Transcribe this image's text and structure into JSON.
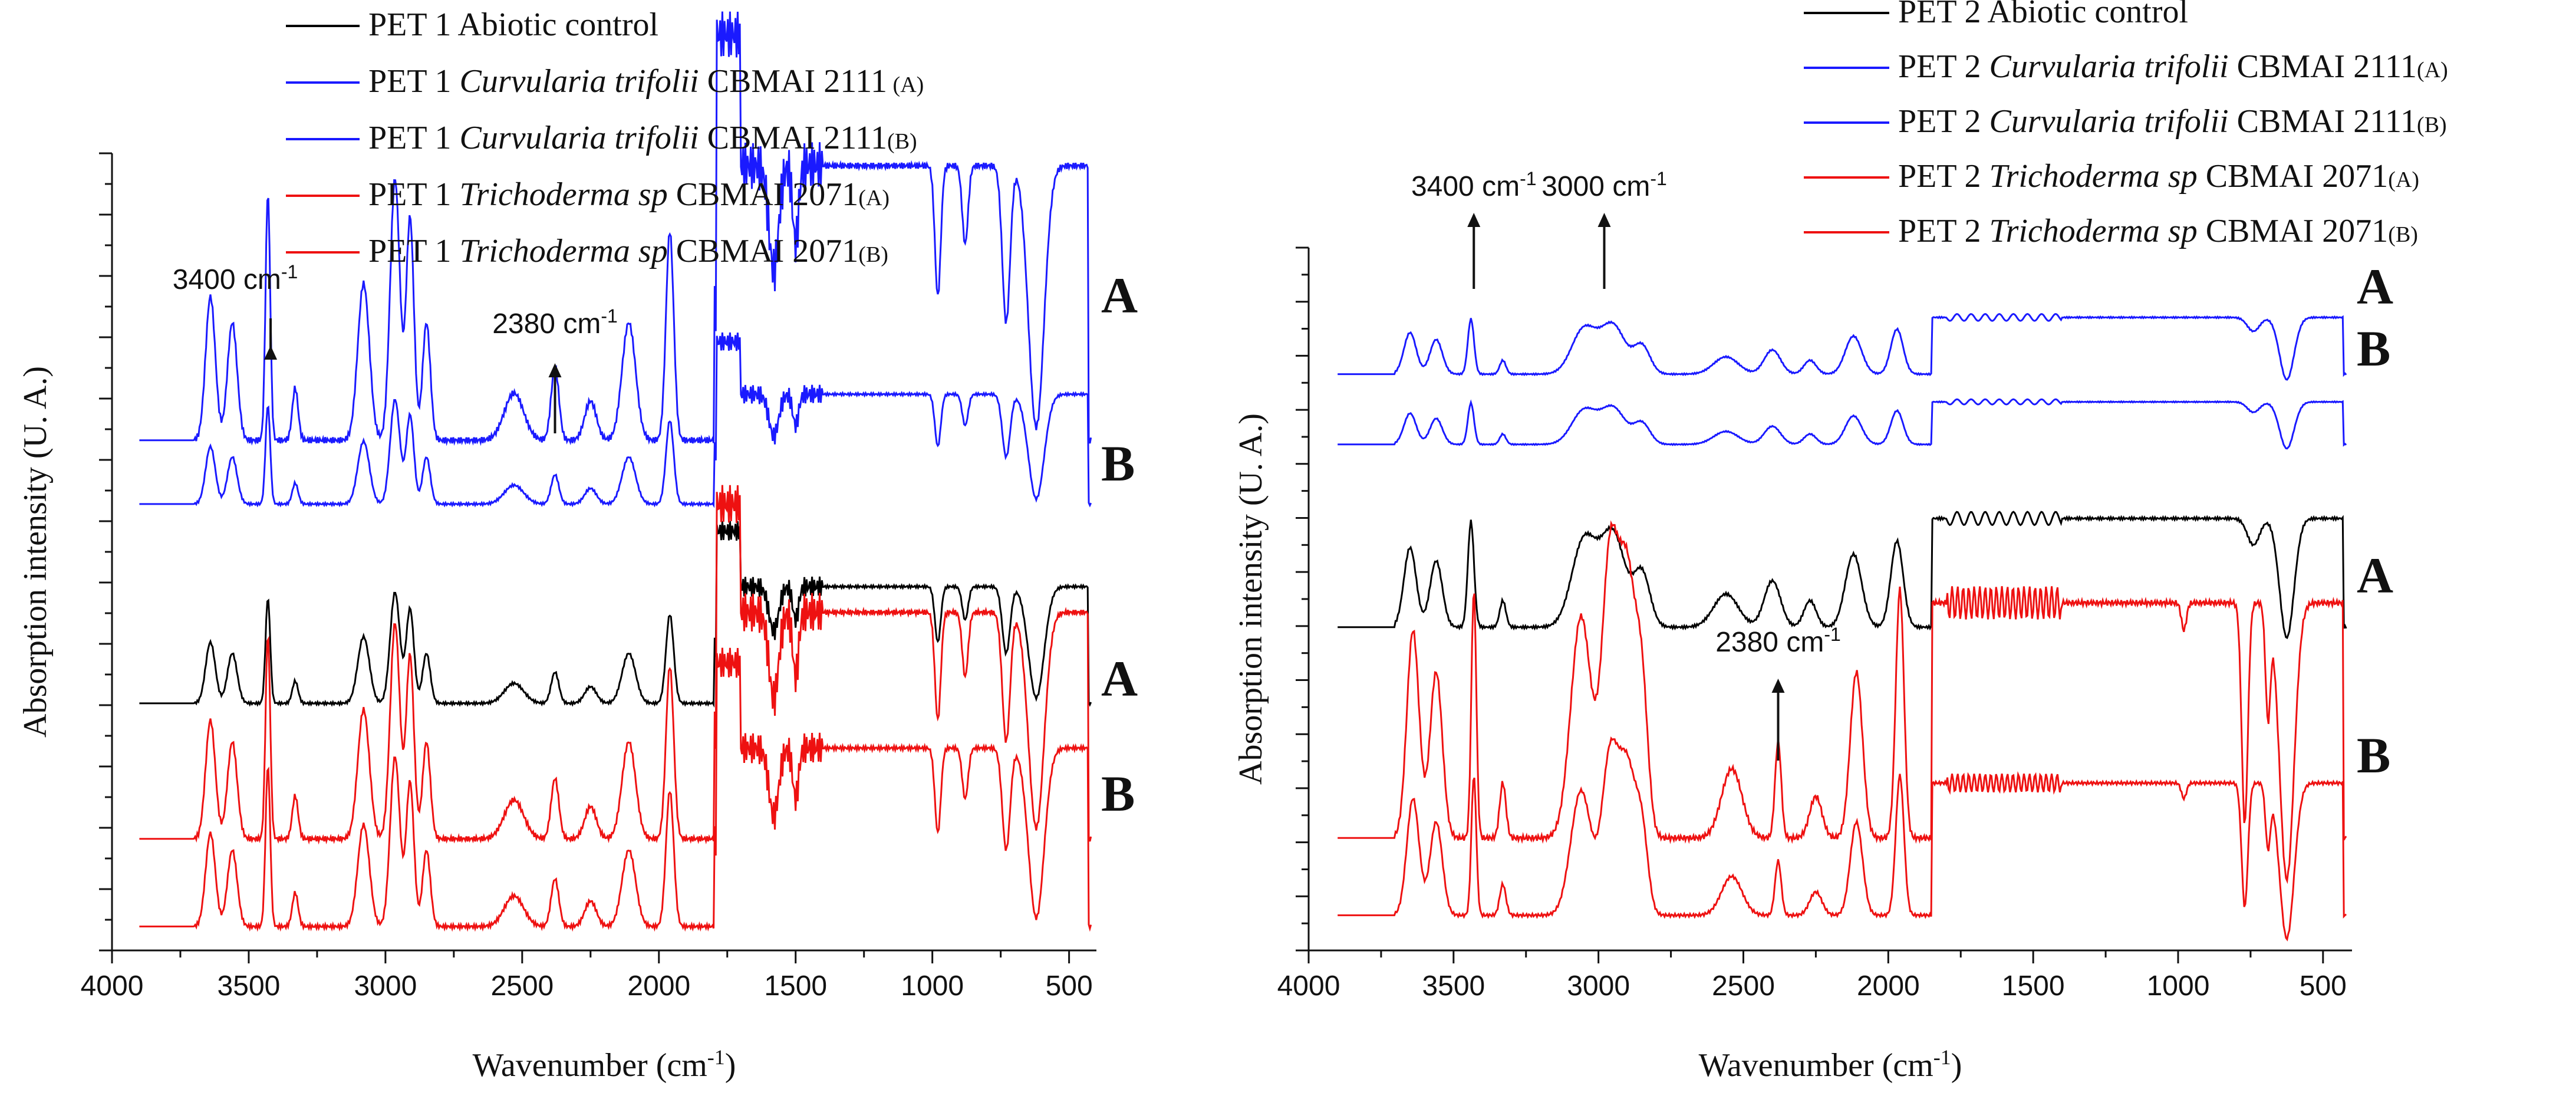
{
  "chart_data": [
    {
      "type": "line",
      "panel": "left",
      "xlabel": "Wavenumber (cm",
      "xlabel_sup": "-1",
      "xlabel_end": ")",
      "ylabel": "Absorption intensity (U. A.)",
      "xlim": [
        4000,
        400
      ],
      "x_ticks": [
        "4000",
        "3500",
        "3000",
        "2500",
        "2000",
        "1500",
        "1000",
        "500"
      ],
      "legend": [
        {
          "label": "PET 1 Abiotic control",
          "color": "#000000"
        },
        {
          "label": "PET 1 ",
          "species": "Curvularia trifolii",
          "suffix": " CBMAI 2111",
          "tag": " (A)",
          "color": "#1a1aff"
        },
        {
          "label": "PET 1 ",
          "species": "Curvularia trifolii",
          "suffix": " CBMAI 2111",
          "tag": "(B)",
          "color": "#1a1aff"
        },
        {
          "label": "PET 1 ",
          "species": "Trichoderma sp",
          "suffix": " CBMAI 2071",
          "tag": "(A)",
          "color": "#ee1111"
        },
        {
          "label": "PET 1 ",
          "species": "Trichoderma sp",
          "suffix": " CBMAI 2071",
          "tag": "(B)",
          "color": "#ee1111"
        }
      ],
      "annotations": [
        {
          "text": "3400 cm",
          "sup": "-1",
          "x": 3420
        },
        {
          "text": "2380 cm",
          "sup": "-1",
          "x": 2380
        }
      ],
      "series_letters": [
        "A",
        "B",
        "A",
        "B"
      ],
      "series": [
        {
          "color": "#1a1aff",
          "offset": 0.64,
          "scale": 0.4,
          "profile": "ft"
        },
        {
          "color": "#1a1aff",
          "offset": 0.56,
          "scale": 0.16,
          "profile": "ft"
        },
        {
          "color": "#000000",
          "offset": 0.31,
          "scale": 0.17,
          "profile": "ft"
        },
        {
          "color": "#ee1111",
          "offset": 0.14,
          "scale": 0.33,
          "profile": "ft"
        },
        {
          "color": "#ee1111",
          "offset": 0.03,
          "scale": 0.26,
          "profile": "ft"
        }
      ]
    },
    {
      "type": "line",
      "panel": "right",
      "xlabel": "Wavenumber (cm",
      "xlabel_sup": "-1",
      "xlabel_end": ")",
      "ylabel": "Absorption intensity (U. A.)",
      "xlim": [
        4000,
        400
      ],
      "x_ticks": [
        "4000",
        "3500",
        "3000",
        "2500",
        "2000",
        "1500",
        "1000",
        "500"
      ],
      "legend": [
        {
          "label": "PET 2 Abiotic control",
          "color": "#000000"
        },
        {
          "label": "PET 2 ",
          "species": "Curvularia trifolii",
          "suffix": " CBMAI 2111",
          "tag": "(A)",
          "color": "#1a1aff"
        },
        {
          "label": "PET 2 ",
          "species": "Curvularia trifolii",
          "suffix": " CBMAI 2111",
          "tag": "(B)",
          "color": "#1a1aff"
        },
        {
          "label": "PET 2 ",
          "species": "Trichoderma sp",
          "suffix": " CBMAI 2071",
          "tag": "(A)",
          "color": "#ee1111"
        },
        {
          "label": "PET 2 ",
          "species": "Trichoderma sp",
          "suffix": " CBMAI 2071",
          "tag": "(B)",
          "color": "#ee1111"
        }
      ],
      "annotations": [
        {
          "text": "3400 cm",
          "sup": "-1",
          "x": 3430
        },
        {
          "text": "3000 cm",
          "sup": "-1",
          "x": 2980
        },
        {
          "text": "2380 cm",
          "sup": "-1",
          "x": 2380
        }
      ],
      "series_letters": [
        "A",
        "B",
        "A",
        "B"
      ],
      "series": [
        {
          "color": "#1a1aff",
          "offset": 0.82,
          "scale": 0.12,
          "profile": "ft2"
        },
        {
          "color": "#1a1aff",
          "offset": 0.72,
          "scale": 0.09,
          "profile": "ft2"
        },
        {
          "color": "#000000",
          "offset": 0.46,
          "scale": 0.23,
          "profile": "ft2"
        },
        {
          "color": "#ee1111",
          "offset": 0.16,
          "scale": 0.48,
          "profile": "ft3"
        },
        {
          "color": "#ee1111",
          "offset": 0.05,
          "scale": 0.27,
          "profile": "ft3"
        }
      ]
    }
  ]
}
